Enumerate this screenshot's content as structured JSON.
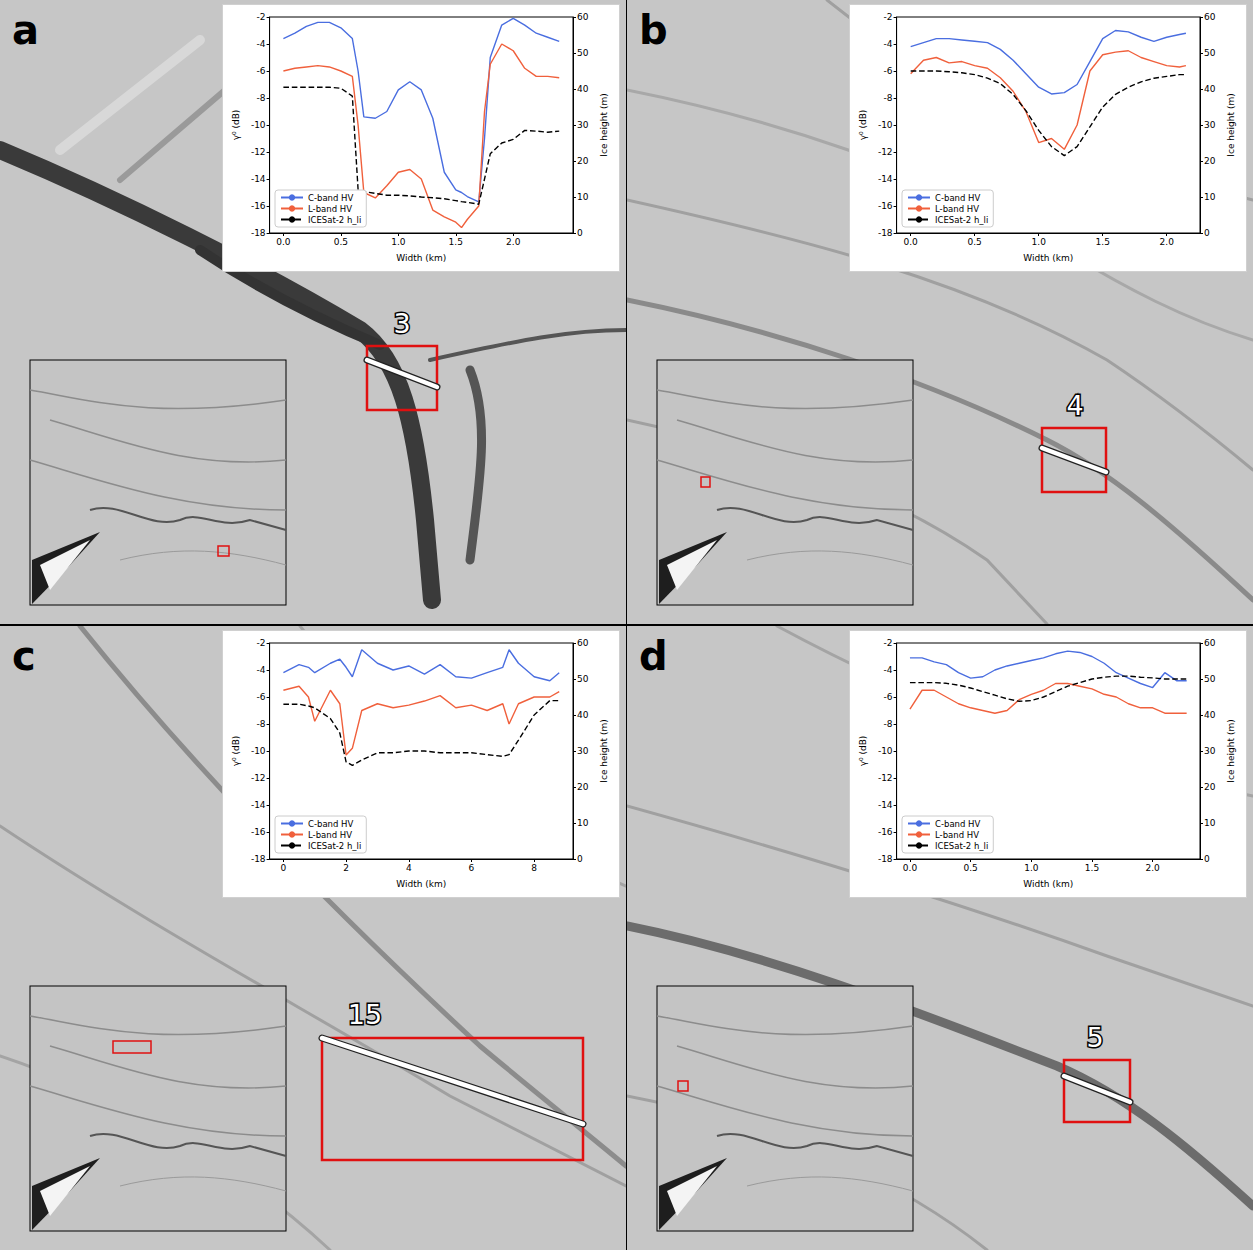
{
  "chart_data": [
    {
      "type": "line",
      "panel": "a",
      "annotations": [
        "3"
      ],
      "xlabel": "Width (km)",
      "ylabel": "γ⁰ (dB)",
      "y2label": "Ice height (m)",
      "legend": "lower left",
      "x": [
        0,
        0.1,
        0.2,
        0.3,
        0.4,
        0.5,
        0.6,
        0.65,
        0.7,
        0.8,
        0.9,
        1.0,
        1.1,
        1.2,
        1.3,
        1.4,
        1.5,
        1.55,
        1.6,
        1.7,
        1.75,
        1.8,
        1.9,
        2.0,
        2.1,
        2.2,
        2.3,
        2.4
      ],
      "xlim": [
        -0.12,
        2.52
      ],
      "xticks": [
        {
          "value": 0,
          "label": "0.0"
        },
        0.5,
        {
          "value": 1,
          "label": "1.0"
        },
        1.5,
        {
          "value": 2,
          "label": "2.0"
        }
      ],
      "ylim": [
        -18,
        -2
      ],
      "yticks": [
        -18,
        -16,
        -14,
        -12,
        -10,
        -8,
        -6,
        -4,
        -2
      ],
      "y2lim": [
        0,
        60
      ],
      "y2ticks": [
        0,
        10,
        20,
        30,
        40,
        50,
        60
      ],
      "series": [
        {
          "name": "C-band HV",
          "color": "#4a6ee0",
          "line_style": "solid",
          "values": [
            -3.6,
            -3.2,
            -2.7,
            -2.4,
            -2.4,
            -2.8,
            -3.6,
            -6,
            -9.4,
            -9.5,
            -9,
            -7.4,
            -6.8,
            -7.4,
            -9.5,
            -13.5,
            -14.8,
            -15,
            -15.3,
            -15.7,
            -11,
            -5,
            -2.6,
            -2.1,
            -2.6,
            -3.2,
            -3.5,
            -3.8
          ]
        },
        {
          "name": "L-band HV",
          "color": "#f0603c",
          "line_style": "solid",
          "values": [
            -6,
            -5.8,
            -5.7,
            -5.6,
            -5.7,
            -6,
            -6.4,
            -10,
            -15,
            -15.4,
            -14.5,
            -13.5,
            -13.3,
            -14,
            -16.3,
            -16.8,
            -17.2,
            -17.6,
            -17,
            -16,
            -9,
            -5.5,
            -4,
            -4.5,
            -5.8,
            -6.4,
            -6.4,
            -6.5
          ]
        },
        {
          "name": "ICESat-2 h_li",
          "color": "#000000",
          "line_style": "dashed",
          "axis": "y2",
          "values": [
            40.5,
            40.5,
            40.5,
            40.5,
            40.5,
            40.2,
            38,
            12,
            11.5,
            11,
            10.5,
            10.5,
            10.3,
            10,
            9.8,
            9.5,
            9,
            8.7,
            8.5,
            8,
            15,
            22,
            25,
            26,
            28.5,
            28.3,
            28,
            28.3
          ]
        }
      ]
    },
    {
      "type": "line",
      "panel": "b",
      "annotations": [
        "4"
      ],
      "xlabel": "Width (km)",
      "ylabel": "γ⁰ (dB)",
      "y2label": "Ice height (m)",
      "legend": "lower left",
      "x": [
        0,
        0.1,
        0.2,
        0.3,
        0.4,
        0.5,
        0.6,
        0.7,
        0.8,
        0.9,
        1.0,
        1.1,
        1.2,
        1.3,
        1.4,
        1.5,
        1.6,
        1.7,
        1.8,
        1.9,
        2.0,
        2.1,
        2.15
      ],
      "xlim": [
        -0.11,
        2.26
      ],
      "xticks": [
        {
          "value": 0,
          "label": "0.0"
        },
        0.5,
        {
          "value": 1,
          "label": "1.0"
        },
        1.5,
        {
          "value": 2,
          "label": "2.0"
        }
      ],
      "ylim": [
        -18,
        -2
      ],
      "yticks": [
        -18,
        -16,
        -14,
        -12,
        -10,
        -8,
        -6,
        -4,
        -2
      ],
      "y2lim": [
        0,
        60
      ],
      "y2ticks": [
        0,
        10,
        20,
        30,
        40,
        50,
        60
      ],
      "series": [
        {
          "name": "C-band HV",
          "color": "#4a6ee0",
          "line_style": "solid",
          "values": [
            -4.2,
            -3.9,
            -3.6,
            -3.6,
            -3.7,
            -3.8,
            -3.9,
            -4.4,
            -5.2,
            -6.2,
            -7.2,
            -7.7,
            -7.6,
            -7,
            -5.3,
            -3.6,
            -3,
            -3.1,
            -3.5,
            -3.8,
            -3.5,
            -3.3,
            -3.2
          ]
        },
        {
          "name": "L-band HV",
          "color": "#f0603c",
          "line_style": "solid",
          "values": [
            -6.2,
            -5.2,
            -5,
            -5.4,
            -5.3,
            -5.6,
            -5.8,
            -6.5,
            -7.5,
            -9,
            -11.3,
            -11,
            -11.8,
            -10,
            -6,
            -4.8,
            -4.6,
            -4.5,
            -5,
            -5.3,
            -5.6,
            -5.7,
            -5.6
          ]
        },
        {
          "name": "ICESat-2 h_li",
          "color": "#000000",
          "line_style": "dashed",
          "axis": "y2",
          "values": [
            45,
            45,
            45,
            44.8,
            44.5,
            44,
            43,
            41.5,
            38.5,
            34,
            28.5,
            24,
            21.5,
            24,
            29.5,
            35,
            38.5,
            40.5,
            42,
            43,
            43.5,
            44,
            44
          ]
        }
      ]
    },
    {
      "type": "line",
      "panel": "c",
      "annotations": [
        "15"
      ],
      "xlabel": "Width (km)",
      "ylabel": "γ⁰ (dB)",
      "y2label": "Ice height (m)",
      "legend": "lower left",
      "x": [
        0,
        0.5,
        0.8,
        1.0,
        1.5,
        1.8,
        2.0,
        2.2,
        2.5,
        3,
        3.5,
        4,
        4.5,
        5,
        5.5,
        6,
        6.5,
        7,
        7.2,
        7.5,
        8,
        8.5,
        8.8
      ],
      "xlim": [
        -0.44,
        9.24
      ],
      "xticks": [
        0,
        2,
        4,
        6,
        8
      ],
      "ylim": [
        -18,
        -2
      ],
      "yticks": [
        -18,
        -16,
        -14,
        -12,
        -10,
        -8,
        -6,
        -4,
        -2
      ],
      "y2lim": [
        0,
        60
      ],
      "y2ticks": [
        0,
        10,
        20,
        30,
        40,
        50,
        60
      ],
      "series": [
        {
          "name": "C-band HV",
          "color": "#4a6ee0",
          "line_style": "solid",
          "values": [
            -4.2,
            -3.6,
            -3.8,
            -4.2,
            -3.5,
            -3.2,
            -3.8,
            -4.5,
            -2.5,
            -3.5,
            -4,
            -3.7,
            -4.3,
            -3.6,
            -4.5,
            -4.6,
            -4.2,
            -3.8,
            -2.5,
            -3.5,
            -4.5,
            -4.8,
            -4.2
          ]
        },
        {
          "name": "L-band HV",
          "color": "#f0603c",
          "line_style": "solid",
          "values": [
            -5.5,
            -5.2,
            -6,
            -7.8,
            -5.5,
            -6.5,
            -10.3,
            -9.8,
            -7,
            -6.5,
            -6.8,
            -6.6,
            -6.3,
            -5.9,
            -6.8,
            -6.6,
            -7,
            -6.5,
            -8,
            -6.5,
            -6,
            -6,
            -5.6
          ]
        },
        {
          "name": "ICESat-2 h_li",
          "color": "#000000",
          "line_style": "dashed",
          "axis": "y2",
          "values": [
            43,
            43,
            42.5,
            42,
            39,
            35,
            27,
            26,
            27.5,
            29.5,
            29.5,
            30,
            30,
            29.5,
            29.5,
            29.5,
            29,
            28.5,
            29,
            33,
            40,
            44,
            44
          ]
        }
      ]
    },
    {
      "type": "line",
      "panel": "d",
      "annotations": [
        "5"
      ],
      "xlabel": "Width (km)",
      "ylabel": "γ⁰ (dB)",
      "y2label": "Ice height (m)",
      "legend": "lower left",
      "x": [
        0,
        0.1,
        0.2,
        0.3,
        0.4,
        0.5,
        0.6,
        0.7,
        0.8,
        0.9,
        1.0,
        1.1,
        1.2,
        1.3,
        1.4,
        1.5,
        1.6,
        1.7,
        1.8,
        1.9,
        2.0,
        2.1,
        2.2,
        2.28
      ],
      "xlim": [
        -0.11,
        2.39
      ],
      "xticks": [
        {
          "value": 0,
          "label": "0.0"
        },
        0.5,
        {
          "value": 1,
          "label": "1.0"
        },
        1.5,
        {
          "value": 2,
          "label": "2.0"
        }
      ],
      "ylim": [
        -18,
        -2
      ],
      "yticks": [
        -18,
        -16,
        -14,
        -12,
        -10,
        -8,
        -6,
        -4,
        -2
      ],
      "y2lim": [
        0,
        60
      ],
      "y2ticks": [
        0,
        10,
        20,
        30,
        40,
        50,
        60
      ],
      "series": [
        {
          "name": "C-band HV",
          "color": "#4a6ee0",
          "line_style": "solid",
          "values": [
            -3.1,
            -3.1,
            -3.4,
            -3.6,
            -4.2,
            -4.6,
            -4.5,
            -4,
            -3.7,
            -3.5,
            -3.3,
            -3.1,
            -2.8,
            -2.6,
            -2.7,
            -3,
            -3.5,
            -4.2,
            -4.6,
            -5,
            -5.3,
            -4.2,
            -4.8,
            -4.8
          ]
        },
        {
          "name": "L-band HV",
          "color": "#f0603c",
          "line_style": "solid",
          "values": [
            -6.9,
            -5.5,
            -5.5,
            -6,
            -6.5,
            -6.8,
            -7,
            -7.2,
            -7,
            -6.2,
            -5.8,
            -5.5,
            -5,
            -5,
            -5.2,
            -5.4,
            -5.8,
            -6,
            -6.5,
            -6.8,
            -6.8,
            -7.2,
            -7.2,
            -7.2
          ]
        },
        {
          "name": "ICESat-2 h_li",
          "color": "#000000",
          "line_style": "dashed",
          "axis": "y2",
          "values": [
            49,
            49,
            49,
            48.8,
            48.3,
            47.5,
            46.5,
            45.5,
            44.5,
            43.8,
            44,
            45,
            46.5,
            48,
            49,
            50,
            50.5,
            50.8,
            50.8,
            50.5,
            50.3,
            50,
            50,
            50
          ]
        }
      ]
    }
  ]
}
